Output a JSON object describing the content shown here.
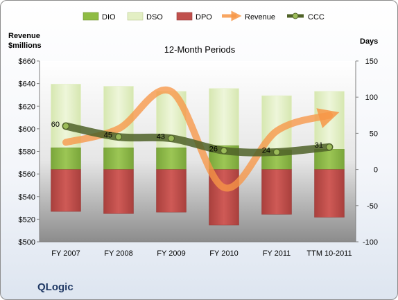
{
  "company": "QLogic",
  "colors": {
    "dio": "#8fbc44",
    "dso": "#e3efc4",
    "dpo": "#c0504d",
    "revenue": "#f79646",
    "ccc": "#4f6228"
  },
  "chart_data": {
    "type": "bar",
    "title": "12-Month Periods",
    "ylabel_left": "Revenue $millions",
    "ylabel_right": "Days",
    "categories": [
      "FY 2007",
      "FY 2008",
      "FY 2009",
      "FY 2010",
      "FY 2011",
      "TTM 10-2011"
    ],
    "ylim_left": [
      500,
      660
    ],
    "ylim_right": [
      -100,
      150
    ],
    "left_ticks": [
      "$500",
      "$520",
      "$540",
      "$560",
      "$580",
      "$600",
      "$620",
      "$640",
      "$660"
    ],
    "right_ticks": [
      "-100",
      "-50",
      "0",
      "50",
      "100",
      "150"
    ],
    "legend": [
      "DIO",
      "DSO",
      "DPO",
      "Revenue",
      "CCC"
    ],
    "legend_position": "top",
    "series": [
      {
        "name": "DIO",
        "axis": "right",
        "values": [
          30,
          30,
          30,
          33,
          27,
          28
        ]
      },
      {
        "name": "DSO",
        "axis": "right",
        "values": [
          88,
          85,
          78,
          79,
          75,
          80
        ]
      },
      {
        "name": "DPO",
        "axis": "right",
        "values": [
          -58,
          -61,
          -59,
          -77,
          -62,
          -66
        ]
      },
      {
        "name": "Revenue",
        "axis": "left",
        "values": [
          588,
          600,
          633,
          548,
          598,
          612
        ]
      },
      {
        "name": "CCC",
        "axis": "right",
        "values": [
          60,
          45,
          43,
          26,
          24,
          31
        ]
      }
    ],
    "ccc_labels": [
      "60",
      "45",
      "43",
      "26",
      "24",
      "31"
    ],
    "grid": false
  }
}
